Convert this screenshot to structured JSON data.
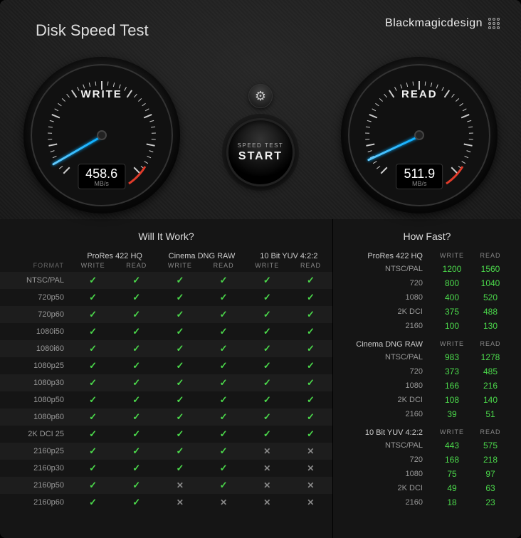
{
  "title": "Disk Speed Test",
  "brand": "Blackmagicdesign",
  "start": {
    "line1": "SPEED TEST",
    "line2": "START"
  },
  "gauges": {
    "write": {
      "label": "WRITE",
      "value": "458.6",
      "unit": "MB/s",
      "angle": 195
    },
    "read": {
      "label": "READ",
      "value": "511.9",
      "unit": "MB/s",
      "angle": 200
    }
  },
  "sections": {
    "left_title": "Will It Work?",
    "right_title": "How Fast?",
    "format_label": "FORMAT",
    "write_label": "WRITE",
    "read_label": "READ"
  },
  "codecs": [
    "ProRes 422 HQ",
    "Cinema DNG RAW",
    "10 Bit YUV 4:2:2"
  ],
  "formats": [
    "NTSC/PAL",
    "720p50",
    "720p60",
    "1080i50",
    "1080i60",
    "1080p25",
    "1080p30",
    "1080p50",
    "1080p60",
    "2K DCI 25",
    "2160p25",
    "2160p30",
    "2160p50",
    "2160p60"
  ],
  "will_it_work": [
    [
      [
        true,
        true
      ],
      [
        true,
        true
      ],
      [
        true,
        true
      ]
    ],
    [
      [
        true,
        true
      ],
      [
        true,
        true
      ],
      [
        true,
        true
      ]
    ],
    [
      [
        true,
        true
      ],
      [
        true,
        true
      ],
      [
        true,
        true
      ]
    ],
    [
      [
        true,
        true
      ],
      [
        true,
        true
      ],
      [
        true,
        true
      ]
    ],
    [
      [
        true,
        true
      ],
      [
        true,
        true
      ],
      [
        true,
        true
      ]
    ],
    [
      [
        true,
        true
      ],
      [
        true,
        true
      ],
      [
        true,
        true
      ]
    ],
    [
      [
        true,
        true
      ],
      [
        true,
        true
      ],
      [
        true,
        true
      ]
    ],
    [
      [
        true,
        true
      ],
      [
        true,
        true
      ],
      [
        true,
        true
      ]
    ],
    [
      [
        true,
        true
      ],
      [
        true,
        true
      ],
      [
        true,
        true
      ]
    ],
    [
      [
        true,
        true
      ],
      [
        true,
        true
      ],
      [
        true,
        true
      ]
    ],
    [
      [
        true,
        true
      ],
      [
        true,
        true
      ],
      [
        false,
        false
      ]
    ],
    [
      [
        true,
        true
      ],
      [
        true,
        true
      ],
      [
        false,
        false
      ]
    ],
    [
      [
        true,
        true
      ],
      [
        false,
        true
      ],
      [
        false,
        false
      ]
    ],
    [
      [
        true,
        true
      ],
      [
        false,
        false
      ],
      [
        false,
        false
      ]
    ]
  ],
  "how_fast": [
    {
      "name": "ProRes 422 HQ",
      "rows": [
        {
          "label": "NTSC/PAL",
          "write": "1200",
          "read": "1560"
        },
        {
          "label": "720",
          "write": "800",
          "read": "1040"
        },
        {
          "label": "1080",
          "write": "400",
          "read": "520"
        },
        {
          "label": "2K DCI",
          "write": "375",
          "read": "488"
        },
        {
          "label": "2160",
          "write": "100",
          "read": "130"
        }
      ]
    },
    {
      "name": "Cinema DNG RAW",
      "rows": [
        {
          "label": "NTSC/PAL",
          "write": "983",
          "read": "1278"
        },
        {
          "label": "720",
          "write": "373",
          "read": "485"
        },
        {
          "label": "1080",
          "write": "166",
          "read": "216"
        },
        {
          "label": "2K DCI",
          "write": "108",
          "read": "140"
        },
        {
          "label": "2160",
          "write": "39",
          "read": "51"
        }
      ]
    },
    {
      "name": "10 Bit YUV 4:2:2",
      "rows": [
        {
          "label": "NTSC/PAL",
          "write": "443",
          "read": "575"
        },
        {
          "label": "720",
          "write": "168",
          "read": "218"
        },
        {
          "label": "1080",
          "write": "75",
          "read": "97"
        },
        {
          "label": "2K DCI",
          "write": "49",
          "read": "63"
        },
        {
          "label": "2160",
          "write": "18",
          "read": "23"
        }
      ]
    }
  ],
  "colors": {
    "green": "#4bd94b",
    "needle": "#2aa8ff",
    "red_arc": "#e03b2a"
  }
}
